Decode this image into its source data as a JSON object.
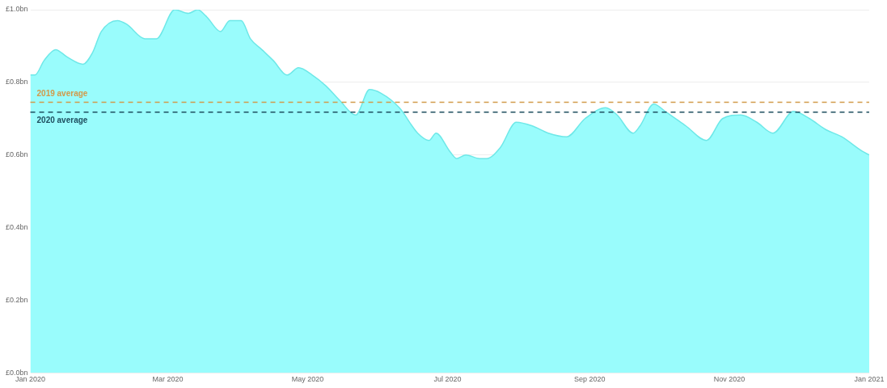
{
  "chart_data": {
    "type": "area",
    "color": "#99fcfc",
    "x": [
      "2020-01-01",
      "2020-01-03",
      "2020-01-07",
      "2020-01-12",
      "2020-01-17",
      "2020-01-24",
      "2020-01-28",
      "2020-02-01",
      "2020-02-08",
      "2020-02-12",
      "2020-02-20",
      "2020-02-25",
      "2020-03-04",
      "2020-03-10",
      "2020-03-14",
      "2020-03-18",
      "2020-03-24",
      "2020-03-28",
      "2020-04-02",
      "2020-04-06",
      "2020-04-11",
      "2020-04-16",
      "2020-04-22",
      "2020-04-27",
      "2020-05-03",
      "2020-05-09",
      "2020-05-15",
      "2020-05-22",
      "2020-05-28",
      "2020-06-02",
      "2020-06-10",
      "2020-06-18",
      "2020-06-23",
      "2020-06-26",
      "2020-07-02",
      "2020-07-05",
      "2020-07-09",
      "2020-07-15",
      "2020-07-18",
      "2020-07-24",
      "2020-07-31",
      "2020-08-07",
      "2020-08-14",
      "2020-08-22",
      "2020-08-30",
      "2020-09-08",
      "2020-09-13",
      "2020-09-20",
      "2020-09-23",
      "2020-09-29",
      "2020-10-04",
      "2020-10-13",
      "2020-10-22",
      "2020-10-29",
      "2020-11-06",
      "2020-11-13",
      "2020-11-20",
      "2020-11-29",
      "2020-12-06",
      "2020-12-13",
      "2020-12-20",
      "2020-12-29",
      "2021-01-01"
    ],
    "values": [
      0.82,
      0.82,
      0.86,
      0.89,
      0.87,
      0.85,
      0.88,
      0.94,
      0.97,
      0.96,
      0.92,
      0.92,
      1.0,
      0.99,
      1.0,
      0.98,
      0.94,
      0.97,
      0.97,
      0.92,
      0.89,
      0.86,
      0.82,
      0.84,
      0.82,
      0.79,
      0.75,
      0.71,
      0.78,
      0.77,
      0.73,
      0.66,
      0.64,
      0.66,
      0.61,
      0.59,
      0.6,
      0.59,
      0.59,
      0.62,
      0.69,
      0.68,
      0.66,
      0.65,
      0.7,
      0.73,
      0.71,
      0.66,
      0.68,
      0.74,
      0.72,
      0.68,
      0.64,
      0.7,
      0.71,
      0.69,
      0.66,
      0.72,
      0.7,
      0.67,
      0.65,
      0.61,
      0.6
    ],
    "xlim": [
      "2020-01-01",
      "2021-01-01"
    ],
    "xticks": [
      {
        "value": "2020-01-01",
        "label": "Jan 2020"
      },
      {
        "value": "2020-03-01",
        "label": "Mar 2020"
      },
      {
        "value": "2020-05-01",
        "label": "May 2020"
      },
      {
        "value": "2020-07-01",
        "label": "Jul 2020"
      },
      {
        "value": "2020-09-01",
        "label": "Sep 2020"
      },
      {
        "value": "2020-11-01",
        "label": "Nov 2020"
      },
      {
        "value": "2021-01-01",
        "label": "Jan 2021"
      }
    ],
    "ylim": [
      0,
      1
    ],
    "yticks": [
      {
        "value": 0,
        "label": "£0.0bn"
      },
      {
        "value": 0.2,
        "label": "£0.2bn"
      },
      {
        "value": 0.4,
        "label": "£0.4bn"
      },
      {
        "value": 0.6,
        "label": "£0.6bn"
      },
      {
        "value": 0.8,
        "label": "£0.8bn"
      },
      {
        "value": 1,
        "label": "£1.0bn"
      }
    ],
    "grid": "y",
    "ref_lines": [
      {
        "axis": "y",
        "value": 0.745,
        "label": "2019 average",
        "color": "#d29a4a",
        "line_style": "dashed"
      },
      {
        "axis": "y",
        "value": 0.718,
        "label": "2020 average",
        "color": "#1f4e5f",
        "line_style": "dashed"
      }
    ]
  }
}
